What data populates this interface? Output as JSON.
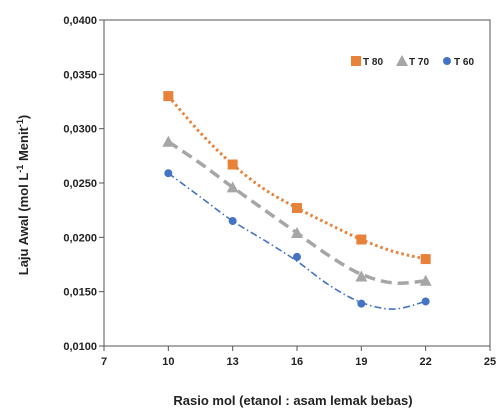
{
  "chart_data": {
    "type": "scatter",
    "xlabel": "Rasio mol (etanol : asam lemak bebas)",
    "ylabel_main": "Laju Awal (mol L",
    "ylabel_sup1": "-1",
    "ylabel_mid": " Menit",
    "ylabel_sup2": "-1",
    "ylabel_end": ")",
    "xlim": [
      7,
      25
    ],
    "ylim": [
      0.01,
      0.04
    ],
    "x_ticks": [
      7,
      10,
      13,
      16,
      19,
      22,
      25
    ],
    "x_tick_labels": [
      "7",
      "10",
      "13",
      "16",
      "19",
      "22",
      "25"
    ],
    "y_ticks": [
      0.01,
      0.015,
      0.02,
      0.025,
      0.03,
      0.035,
      0.04
    ],
    "y_tick_labels": [
      "0,0100",
      "0,0150",
      "0,0200",
      "0,0250",
      "0,0300",
      "0,0350",
      "0,0400"
    ],
    "grid": false,
    "legend_position": "top-right",
    "series": [
      {
        "name": "T 80",
        "marker": "square",
        "line_style": "dotted",
        "color": "#E8823A",
        "x": [
          10,
          13,
          16,
          19,
          22
        ],
        "y": [
          0.033,
          0.0267,
          0.0227,
          0.0198,
          0.018
        ],
        "trend": [
          0.033,
          0.0296,
          0.0267,
          0.0244,
          0.0227,
          0.0212,
          0.0198,
          0.0187,
          0.018
        ]
      },
      {
        "name": "T 70",
        "marker": "triangle",
        "line_style": "dashed",
        "color": "#A6A6A6",
        "x": [
          10,
          13,
          16,
          19,
          22
        ],
        "y": [
          0.0288,
          0.0246,
          0.0204,
          0.0164,
          0.016
        ],
        "trend": [
          0.0288,
          0.0268,
          0.0246,
          0.0225,
          0.0204,
          0.0183,
          0.0166,
          0.0158,
          0.016
        ]
      },
      {
        "name": "T 60",
        "marker": "circle",
        "line_style": "dash-dot",
        "color": "#4472C4",
        "x": [
          10,
          13,
          16,
          19,
          22
        ],
        "y": [
          0.0259,
          0.0215,
          0.0182,
          0.0139,
          0.0141
        ],
        "trend": [
          0.0259,
          0.0237,
          0.0215,
          0.0197,
          0.0178,
          0.0156,
          0.014,
          0.0134,
          0.0141
        ]
      }
    ]
  }
}
